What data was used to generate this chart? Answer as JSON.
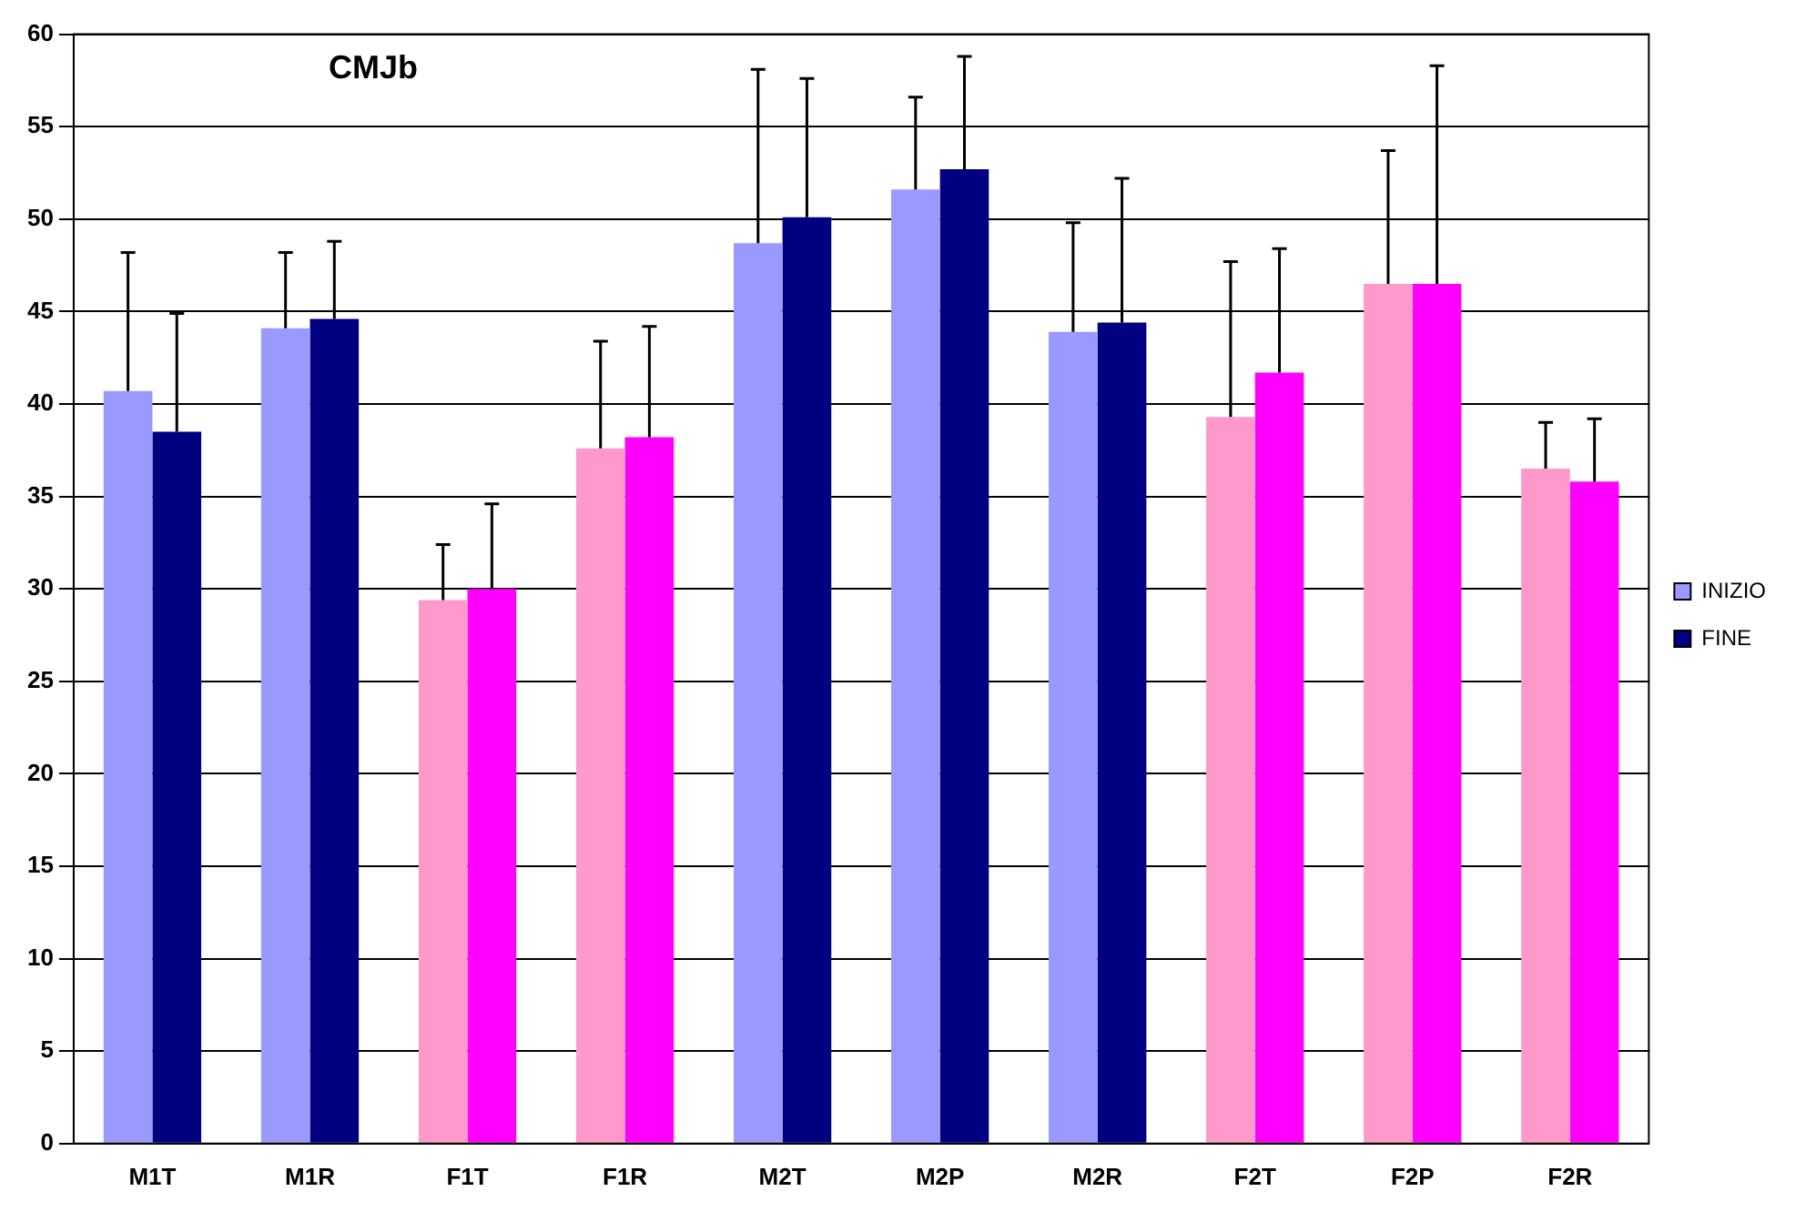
{
  "chart_data": {
    "type": "bar",
    "title": "CMJb",
    "categories": [
      "M1T",
      "M1R",
      "F1T",
      "F1R",
      "M2T",
      "M2P",
      "M2R",
      "F2T",
      "F2P",
      "F2R"
    ],
    "series": [
      {
        "name": "INIZIO",
        "color": "#9999ff",
        "colors": [
          "#9999ff",
          "#9999ff",
          "#ff99cc",
          "#ff99cc",
          "#9999ff",
          "#9999ff",
          "#9999ff",
          "#ff99cc",
          "#ff99cc",
          "#ff99cc"
        ],
        "values": [
          40.7,
          44.1,
          29.4,
          37.6,
          48.7,
          51.6,
          43.9,
          39.3,
          46.5,
          36.5
        ],
        "errors": [
          [
            40.7,
            48.2
          ],
          [
            44.1,
            48.2
          ],
          [
            29.4,
            32.4
          ],
          [
            37.6,
            43.4
          ],
          [
            48.7,
            58.1
          ],
          [
            51.6,
            56.6
          ],
          [
            43.9,
            49.8
          ],
          [
            39.3,
            47.7
          ],
          [
            46.5,
            53.7
          ],
          [
            36.5,
            39.0
          ]
        ]
      },
      {
        "name": "FINE",
        "color": "#000080",
        "colors": [
          "#000080",
          "#000080",
          "#ff00ff",
          "#ff00ff",
          "#000080",
          "#000080",
          "#000080",
          "#ff00ff",
          "#ff00ff",
          "#ff00ff"
        ],
        "values": [
          38.5,
          44.6,
          30.0,
          38.2,
          50.1,
          52.7,
          44.4,
          41.7,
          46.5,
          35.8
        ],
        "errors": [
          [
            38.5,
            44.9
          ],
          [
            44.6,
            48.8
          ],
          [
            30.0,
            34.6
          ],
          [
            38.2,
            44.2
          ],
          [
            50.1,
            57.6
          ],
          [
            52.7,
            58.8
          ],
          [
            44.4,
            52.2
          ],
          [
            41.7,
            48.4
          ],
          [
            46.5,
            58.3
          ],
          [
            35.8,
            39.2
          ]
        ]
      }
    ],
    "ylim": [
      0,
      60
    ],
    "yticks": [
      0,
      5,
      10,
      15,
      20,
      25,
      30,
      35,
      40,
      45,
      50,
      55,
      60
    ],
    "grid": "y",
    "legend": "right"
  }
}
